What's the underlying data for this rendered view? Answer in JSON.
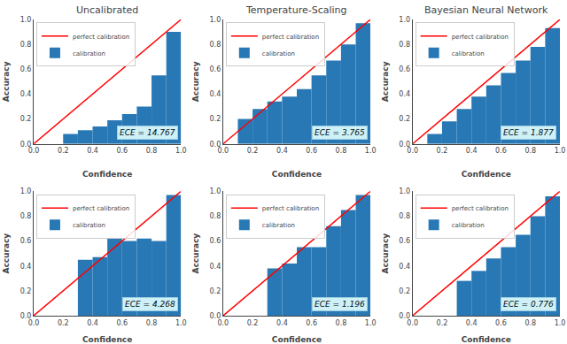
{
  "chart_data": [
    {
      "type": "bar",
      "title": "Uncalibrated",
      "xlabel": "Confidence",
      "ylabel": "Accuracy",
      "bins": [
        0.0,
        0.1,
        0.2,
        0.3,
        0.4,
        0.5,
        0.6,
        0.7,
        0.8,
        0.9,
        1.0
      ],
      "series": [
        {
          "name": "perfect calibration",
          "type": "line",
          "color": "red",
          "x": [
            0,
            1
          ],
          "values": [
            0,
            1
          ]
        },
        {
          "name": "calibration",
          "type": "bar",
          "color": "#2878B5",
          "values": [
            0.0,
            0.0,
            0.08,
            0.11,
            0.14,
            0.19,
            0.24,
            0.3,
            0.55,
            0.9
          ]
        }
      ],
      "annotations": [
        "ECE = 14.767"
      ],
      "xlim": [
        0.0,
        1.0
      ],
      "ylim": [
        0.0,
        1.0
      ],
      "xticks": [
        {
          "value": 0.0,
          "label": "0.0"
        },
        0.2,
        0.4,
        0.6,
        0.8,
        {
          "value": 1.0,
          "label": "1.0"
        }
      ],
      "yticks": [
        {
          "value": 0.0,
          "label": "0.0"
        },
        0.2,
        0.4,
        0.6,
        0.8,
        {
          "value": 1.0,
          "label": "1.0"
        }
      ],
      "grid": false,
      "legend": "upper left"
    },
    {
      "type": "bar",
      "title": "Temperature-Scaling",
      "xlabel": "Confidence",
      "ylabel": "Accuracy",
      "bins": [
        0.0,
        0.1,
        0.2,
        0.3,
        0.4,
        0.5,
        0.6,
        0.7,
        0.8,
        0.9,
        1.0
      ],
      "series": [
        {
          "name": "perfect calibration",
          "type": "line",
          "color": "red",
          "x": [
            0,
            1
          ],
          "values": [
            0,
            1
          ]
        },
        {
          "name": "calibration",
          "type": "bar",
          "color": "#2878B5",
          "values": [
            0.0,
            0.2,
            0.28,
            0.34,
            0.38,
            0.44,
            0.55,
            0.67,
            0.8,
            0.97
          ]
        }
      ],
      "annotations": [
        "ECE = 3.765"
      ],
      "xlim": [
        0.0,
        1.0
      ],
      "ylim": [
        0.0,
        1.0
      ],
      "xticks": [
        {
          "value": 0.0,
          "label": "0.0"
        },
        0.2,
        0.4,
        0.6,
        0.8,
        {
          "value": 1.0,
          "label": "1.0"
        }
      ],
      "yticks": [
        {
          "value": 0.0,
          "label": "0.0"
        },
        0.2,
        0.4,
        0.6,
        0.8,
        {
          "value": 1.0,
          "label": "1.0"
        }
      ],
      "grid": false,
      "legend": "upper left"
    },
    {
      "type": "bar",
      "title": "Bayesian Neural Network",
      "xlabel": "Confidence",
      "ylabel": "Accuracy",
      "bins": [
        0.0,
        0.1,
        0.2,
        0.3,
        0.4,
        0.5,
        0.6,
        0.7,
        0.8,
        0.9,
        1.0
      ],
      "series": [
        {
          "name": "perfect calibration",
          "type": "line",
          "color": "red",
          "x": [
            0,
            1
          ],
          "values": [
            0,
            1
          ]
        },
        {
          "name": "calibration",
          "type": "bar",
          "color": "#2878B5",
          "values": [
            0.0,
            0.08,
            0.18,
            0.28,
            0.38,
            0.47,
            0.57,
            0.67,
            0.78,
            0.93
          ]
        }
      ],
      "annotations": [
        "ECE = 1.877"
      ],
      "xlim": [
        0.0,
        1.0
      ],
      "ylim": [
        0.0,
        1.0
      ],
      "xticks": [
        {
          "value": 0.0,
          "label": "0.0"
        },
        0.2,
        0.4,
        0.6,
        0.8,
        {
          "value": 1.0,
          "label": "1.0"
        }
      ],
      "yticks": [
        {
          "value": 0.0,
          "label": "0.0"
        },
        0.2,
        0.4,
        0.6,
        0.8,
        {
          "value": 1.0,
          "label": "1.0"
        }
      ],
      "grid": false,
      "legend": "upper left"
    },
    {
      "type": "bar",
      "xlabel": "Confidence",
      "ylabel": "Accuracy",
      "bins": [
        0.0,
        0.1,
        0.2,
        0.3,
        0.4,
        0.5,
        0.6,
        0.7,
        0.8,
        0.9,
        1.0
      ],
      "series": [
        {
          "name": "perfect calibration",
          "type": "line",
          "color": "red",
          "x": [
            0,
            1
          ],
          "values": [
            0,
            1
          ]
        },
        {
          "name": "calibration",
          "type": "bar",
          "color": "#2878B5",
          "values": [
            0.0,
            0.0,
            0.0,
            0.45,
            0.47,
            0.62,
            0.6,
            0.62,
            0.6,
            0.97
          ]
        }
      ],
      "annotations": [
        "ECE = 4.268"
      ],
      "xlim": [
        0.0,
        1.0
      ],
      "ylim": [
        0.0,
        1.0
      ],
      "xticks": [
        {
          "value": 0.0,
          "label": "0.0"
        },
        0.2,
        0.4,
        0.6,
        0.8,
        {
          "value": 1.0,
          "label": "1.0"
        }
      ],
      "yticks": [
        {
          "value": 0.0,
          "label": "0.0"
        },
        0.2,
        0.4,
        0.6,
        0.8,
        {
          "value": 1.0,
          "label": "1.0"
        }
      ],
      "grid": false,
      "legend": "upper left"
    },
    {
      "type": "bar",
      "xlabel": "Confidence",
      "ylabel": "Accuracy",
      "bins": [
        0.0,
        0.1,
        0.2,
        0.3,
        0.4,
        0.5,
        0.6,
        0.7,
        0.8,
        0.9,
        1.0
      ],
      "series": [
        {
          "name": "perfect calibration",
          "type": "line",
          "color": "red",
          "x": [
            0,
            1
          ],
          "values": [
            0,
            1
          ]
        },
        {
          "name": "calibration",
          "type": "bar",
          "color": "#2878B5",
          "values": [
            0.0,
            0.0,
            0.0,
            0.38,
            0.42,
            0.55,
            0.55,
            0.72,
            0.85,
            0.97
          ]
        }
      ],
      "annotations": [
        "ECE = 1.196"
      ],
      "xlim": [
        0.0,
        1.0
      ],
      "ylim": [
        0.0,
        1.0
      ],
      "xticks": [
        {
          "value": 0.0,
          "label": "0.0"
        },
        0.2,
        0.4,
        0.6,
        0.8,
        {
          "value": 1.0,
          "label": "1.0"
        }
      ],
      "yticks": [
        {
          "value": 0.0,
          "label": "0.0"
        },
        0.2,
        0.4,
        0.6,
        0.8,
        {
          "value": 1.0,
          "label": "1.0"
        }
      ],
      "grid": false,
      "legend": "upper left"
    },
    {
      "type": "bar",
      "xlabel": "Confidence",
      "ylabel": "Accuracy",
      "bins": [
        0.0,
        0.1,
        0.2,
        0.3,
        0.4,
        0.5,
        0.6,
        0.7,
        0.8,
        0.9,
        1.0
      ],
      "series": [
        {
          "name": "perfect calibration",
          "type": "line",
          "color": "red",
          "x": [
            0,
            1
          ],
          "values": [
            0,
            1
          ]
        },
        {
          "name": "calibration",
          "type": "bar",
          "color": "#2878B5",
          "values": [
            0.0,
            0.0,
            0.0,
            0.28,
            0.36,
            0.46,
            0.55,
            0.65,
            0.8,
            0.96
          ]
        }
      ],
      "annotations": [
        "ECE = 0.776"
      ],
      "xlim": [
        0.0,
        1.0
      ],
      "ylim": [
        0.0,
        1.0
      ],
      "xticks": [
        {
          "value": 0.0,
          "label": "0.0"
        },
        0.2,
        0.4,
        0.6,
        0.8,
        {
          "value": 1.0,
          "label": "1.0"
        }
      ],
      "yticks": [
        {
          "value": 0.0,
          "label": "0.0"
        },
        0.2,
        0.4,
        0.6,
        0.8,
        {
          "value": 1.0,
          "label": "1.0"
        }
      ],
      "grid": false,
      "legend": "upper left"
    }
  ]
}
